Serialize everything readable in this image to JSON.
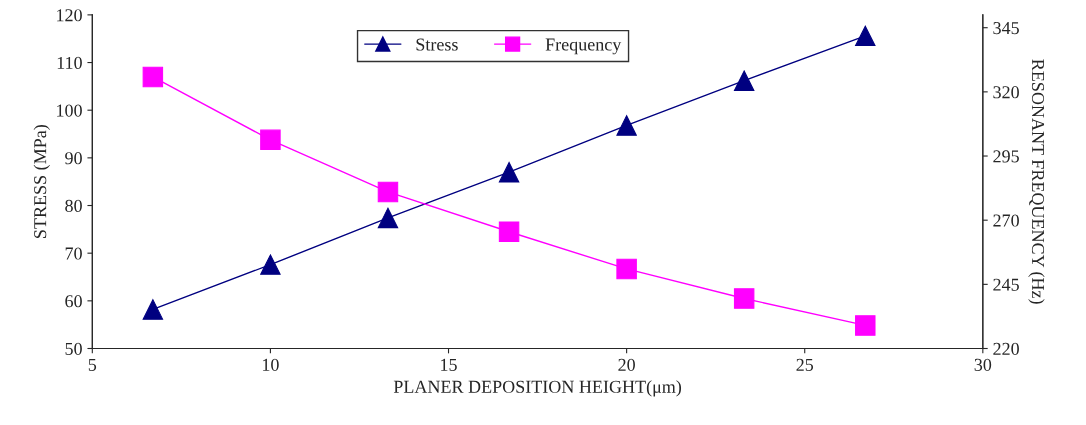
{
  "chart_data": {
    "type": "line",
    "xlabel": "PLANER DEPOSITION HEIGHT(μm)",
    "ylabel": "STRESS (MPa)",
    "y2label": "RESONANT FREQUENCY (Hz)",
    "x": [
      6.7,
      10,
      13.3,
      16.7,
      20,
      23.3,
      26.7
    ],
    "series": [
      {
        "name": "Stress",
        "color": "#000080",
        "marker": "triangle",
        "values": [
          58.2,
          67.6,
          77.4,
          87,
          96.8,
          106.2,
          115.6
        ]
      },
      {
        "name": "Frequency",
        "color": "#ff00ff",
        "marker": "square",
        "axis": "y2",
        "values": [
          325.8,
          301.3,
          281,
          265.5,
          251,
          239.5,
          229
        ]
      }
    ],
    "xlim": [
      5,
      30
    ],
    "xticks": [
      5,
      10,
      15,
      20,
      25,
      30
    ],
    "ylim": [
      50,
      120
    ],
    "yticks": [
      50,
      60,
      70,
      80,
      90,
      100,
      110,
      120
    ],
    "y2lim": [
      220,
      350
    ],
    "y2ticks": [
      220,
      245,
      270,
      295,
      320,
      345
    ],
    "grid": false,
    "legend": "top",
    "line_style": "solid"
  }
}
